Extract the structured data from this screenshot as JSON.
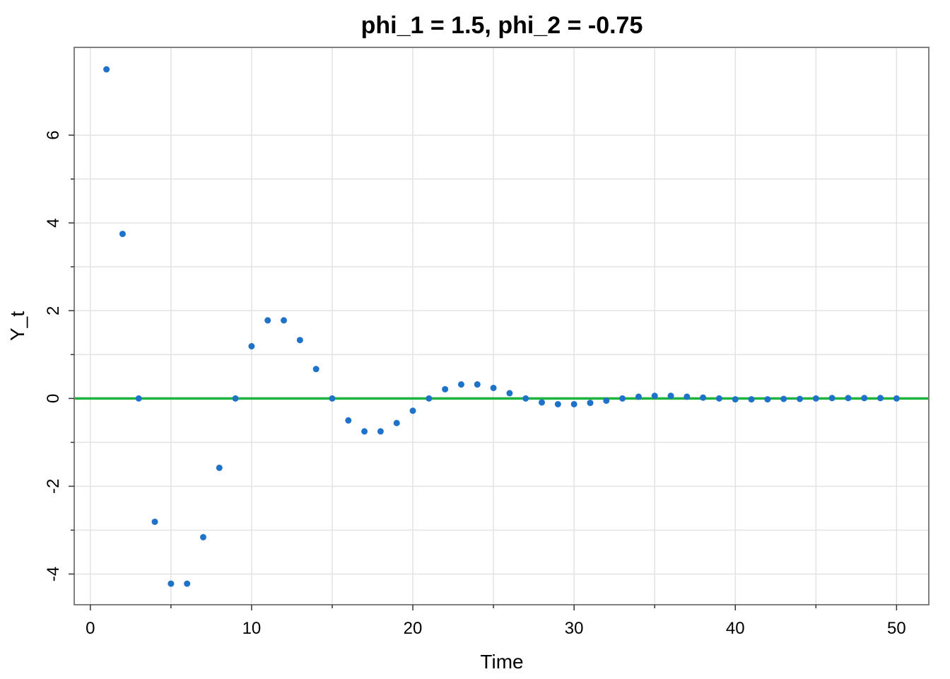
{
  "chart_data": {
    "type": "scatter",
    "title": "phi_1 = 1.5, phi_2 = -0.75",
    "xlabel": "Time",
    "ylabel": "Y_t",
    "xlim": [
      -1,
      52
    ],
    "ylim": [
      -4.7,
      8
    ],
    "x_ticks": [
      0,
      10,
      20,
      30,
      40,
      50
    ],
    "y_ticks": [
      -4,
      -2,
      0,
      2,
      4,
      6
    ],
    "x_tick_labels": [
      "0",
      "10",
      "20",
      "30",
      "40",
      "50"
    ],
    "y_tick_labels": [
      "-4",
      "-2",
      "0",
      "2",
      "4",
      "6"
    ],
    "grid": true,
    "point_color": "#1f72c9",
    "reference_line": {
      "y": 0,
      "color": "#1db33d"
    },
    "series": [
      {
        "x": [
          1,
          2,
          3,
          4,
          5,
          6,
          7,
          8,
          9,
          10,
          11,
          12,
          13,
          14,
          15,
          16,
          17,
          18,
          19,
          20,
          21,
          22,
          23,
          24,
          25,
          26,
          27,
          28,
          29,
          30,
          31,
          32,
          33,
          34,
          35,
          36,
          37,
          38,
          39,
          40,
          41,
          42,
          43,
          44,
          45,
          46,
          47,
          48,
          49,
          50
        ],
        "y": [
          7.5,
          3.75,
          0,
          -2.81,
          -4.22,
          -4.22,
          -3.16,
          -1.58,
          0,
          1.19,
          1.78,
          1.78,
          1.33,
          0.67,
          0,
          -0.5,
          -0.75,
          -0.75,
          -0.56,
          -0.28,
          0,
          0.21,
          0.32,
          0.32,
          0.24,
          0.12,
          0,
          -0.09,
          -0.13,
          -0.13,
          -0.1,
          -0.05,
          0,
          0.04,
          0.06,
          0.06,
          0.04,
          0.02,
          0,
          -0.02,
          -0.02,
          -0.02,
          -0.01,
          -0.01,
          0,
          0.01,
          0.01,
          0.01,
          0.01,
          0
        ]
      }
    ]
  }
}
